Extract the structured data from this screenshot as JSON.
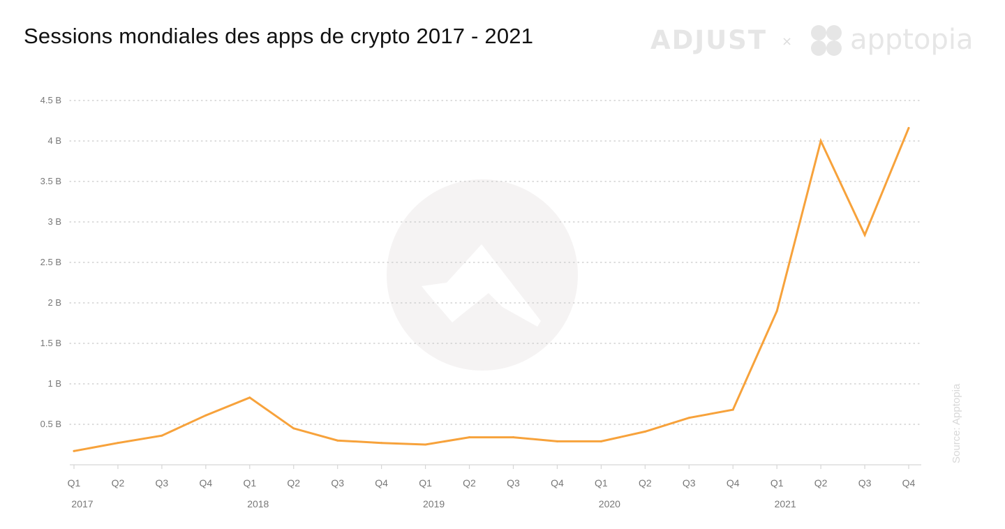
{
  "header": {
    "title": "Sessions mondiales des apps de crypto 2017 - 2021"
  },
  "branding": {
    "adjust": "ADJUST",
    "times": "×",
    "apptopia": "apptopia",
    "source": "Source: Apptopia",
    "watermark_icon": "adjust-logo-icon"
  },
  "colors": {
    "line": "#f7a23b",
    "grid": "#c8c8c8",
    "tick_text": "#777777",
    "watermark": "#f5f3f3"
  },
  "chart_data": {
    "type": "line",
    "title": "Sessions mondiales des apps de crypto 2017 - 2021",
    "xlabel": "",
    "ylabel": "",
    "categories": [
      "Q1",
      "Q2",
      "Q3",
      "Q4",
      "Q1",
      "Q2",
      "Q3",
      "Q4",
      "Q1",
      "Q2",
      "Q3",
      "Q4",
      "Q1",
      "Q2",
      "Q3",
      "Q4",
      "Q1",
      "Q2",
      "Q3",
      "Q4"
    ],
    "years": [
      {
        "label": "2017",
        "start_index": 0
      },
      {
        "label": "2018",
        "start_index": 4
      },
      {
        "label": "2019",
        "start_index": 8
      },
      {
        "label": "2020",
        "start_index": 12
      },
      {
        "label": "2021",
        "start_index": 16
      }
    ],
    "series": [
      {
        "values": [
          0.17,
          0.27,
          0.36,
          0.61,
          0.83,
          0.45,
          0.3,
          0.27,
          0.25,
          0.34,
          0.34,
          0.29,
          0.29,
          0.41,
          0.58,
          0.68,
          1.9,
          4.0,
          2.84,
          4.16
        ]
      }
    ],
    "ylim": [
      0,
      4.5
    ],
    "yticks": [
      {
        "value": 0.5,
        "label": "0.5 B"
      },
      {
        "value": 1,
        "label": "1 B"
      },
      {
        "value": 1.5,
        "label": "1.5 B"
      },
      {
        "value": 2,
        "label": "2 B"
      },
      {
        "value": 2.5,
        "label": "2.5 B"
      },
      {
        "value": 3,
        "label": "3 B"
      },
      {
        "value": 3.5,
        "label": "3.5 B"
      },
      {
        "value": 4,
        "label": "4 B"
      },
      {
        "value": 4.5,
        "label": "4.5 B"
      }
    ],
    "grid": true,
    "legend": "none"
  }
}
